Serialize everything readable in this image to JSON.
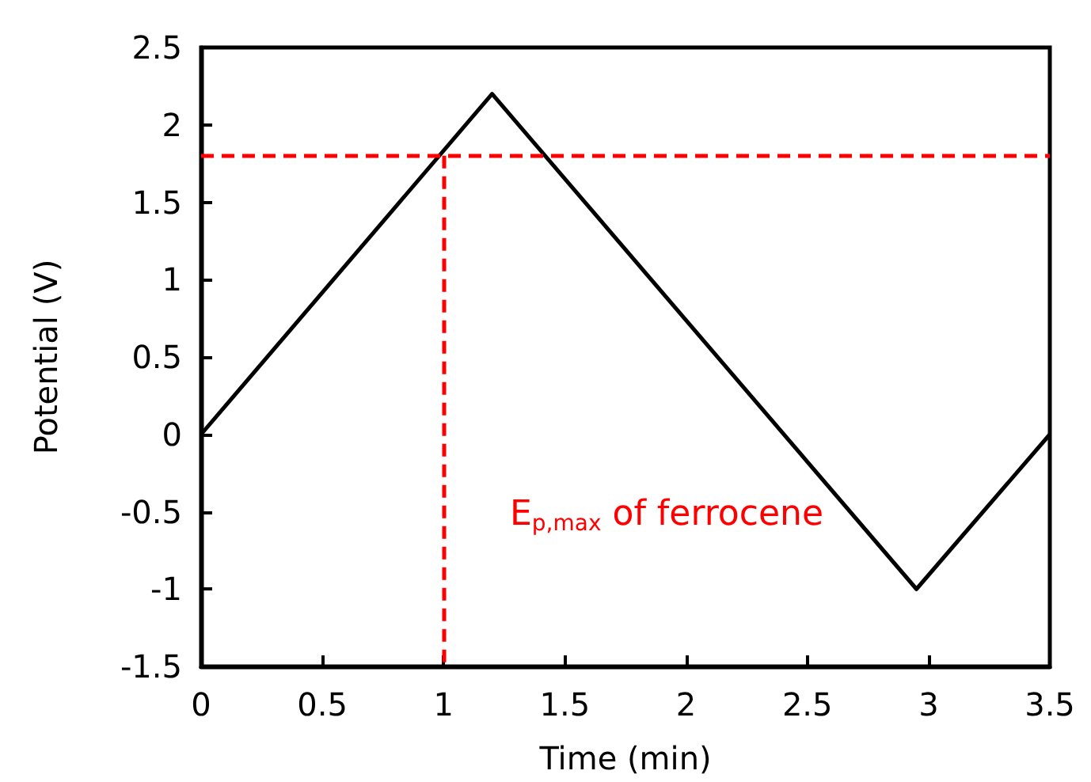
{
  "chart_data": {
    "type": "line",
    "xlabel": "Time (min)",
    "ylabel": "Potential (V)",
    "x": [
      0,
      1.2,
      2.95,
      3.5
    ],
    "series": [
      {
        "color": "#000000",
        "values": [
          0,
          2.2,
          -1,
          0
        ]
      }
    ],
    "xlim": [
      0,
      3.5
    ],
    "xticks": [
      0,
      0.5,
      1,
      1.5,
      2,
      2.5,
      3,
      3.5
    ],
    "ylim": [
      -1.5,
      2.5
    ],
    "yticks": [
      -1.5,
      -1,
      -0.5,
      0,
      0.5,
      1,
      1.5,
      2,
      2.5
    ],
    "grid": false,
    "marker": "none",
    "line_style": "solid",
    "ref_lines": [
      {
        "axis": "y",
        "value": 1.8,
        "color": "#ff0000",
        "line_style": "dashed"
      },
      {
        "axis": "x",
        "value": 1,
        "color": "#ff0000",
        "line_style": "dashed"
      }
    ],
    "annotations": [
      "E$_{p,max}$ of ferrocene"
    ]
  }
}
